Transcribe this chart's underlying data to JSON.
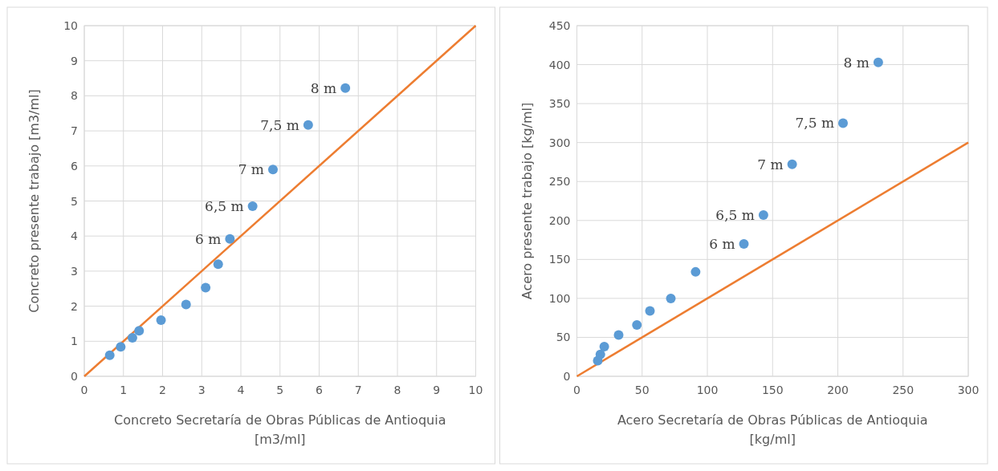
{
  "chart_data": [
    {
      "type": "scatter",
      "xlabel": "Concreto Secretaría de Obras Públicas de Antioquia [m3/ml]",
      "ylabel": "Concreto presente trabajo [m3/ml]",
      "xlim": [
        0,
        10
      ],
      "ylim": [
        0,
        10
      ],
      "xticks": [
        0,
        1,
        2,
        3,
        4,
        5,
        6,
        7,
        8,
        9,
        10
      ],
      "yticks": [
        0,
        1,
        2,
        3,
        4,
        5,
        6,
        7,
        8,
        9,
        10
      ],
      "grid": true,
      "series": [
        {
          "marker": "circle",
          "color": "#5b9bd5",
          "x": [
            0.65,
            0.93,
            1.23,
            1.4,
            1.96,
            2.6,
            3.1,
            3.42,
            3.72,
            4.3,
            4.82,
            5.72,
            6.67
          ],
          "values": [
            0.6,
            0.84,
            1.1,
            1.3,
            1.6,
            2.05,
            2.53,
            3.2,
            3.92,
            4.85,
            5.9,
            7.17,
            8.22
          ]
        },
        {
          "type": "line",
          "marker": "none",
          "color": "#ed7d31",
          "x": [
            0,
            10
          ],
          "values": [
            0,
            10
          ]
        }
      ],
      "annotations": [
        {
          "text": "6 m",
          "x": 3.72,
          "y": 3.92
        },
        {
          "text": "6,5 m",
          "x": 4.3,
          "y": 4.85
        },
        {
          "text": "7 m",
          "x": 4.82,
          "y": 5.9
        },
        {
          "text": "7,5 m",
          "x": 5.72,
          "y": 7.17
        },
        {
          "text": "8 m",
          "x": 6.67,
          "y": 8.22
        }
      ]
    },
    {
      "type": "scatter",
      "xlabel": "Acero Secretaría de Obras Públicas de Antioquia [kg/ml]",
      "ylabel": "Acero presente trabajo [kg/ml]",
      "xlim": [
        0,
        300
      ],
      "ylim": [
        0,
        450
      ],
      "xticks": [
        0,
        50,
        100,
        150,
        200,
        250,
        300
      ],
      "yticks": [
        0,
        50,
        100,
        150,
        200,
        250,
        300,
        350,
        400,
        450
      ],
      "grid": true,
      "series": [
        {
          "marker": "circle",
          "color": "#5b9bd5",
          "x": [
            16,
            18,
            21,
            32,
            46,
            56,
            72,
            91,
            128,
            143,
            165,
            204,
            231
          ],
          "values": [
            20,
            28,
            38,
            53,
            66,
            84,
            100,
            134,
            170,
            207,
            272,
            325,
            403
          ]
        },
        {
          "type": "line",
          "marker": "none",
          "color": "#ed7d31",
          "x": [
            0,
            300
          ],
          "values": [
            0,
            300
          ]
        }
      ],
      "annotations": [
        {
          "text": "6 m",
          "x": 128,
          "y": 170
        },
        {
          "text": "6,5 m",
          "x": 143,
          "y": 207
        },
        {
          "text": "7 m",
          "x": 165,
          "y": 272
        },
        {
          "text": "7,5 m",
          "x": 204,
          "y": 325
        },
        {
          "text": "8 m",
          "x": 231,
          "y": 403
        }
      ]
    }
  ]
}
